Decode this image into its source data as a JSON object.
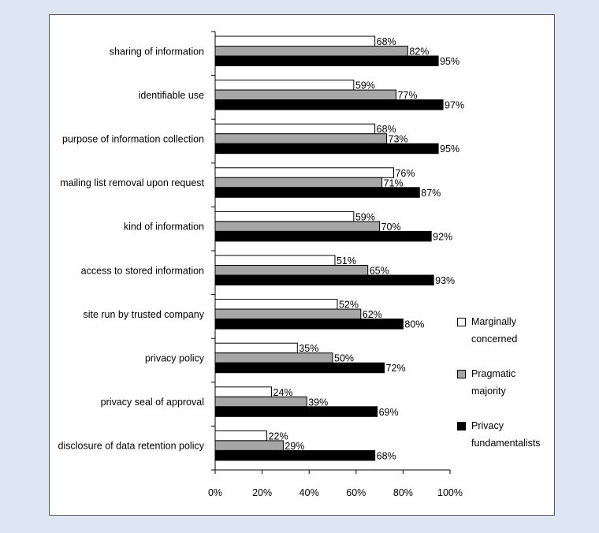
{
  "chart_data": {
    "type": "bar",
    "orientation": "horizontal",
    "categories": [
      "sharing of information",
      "identifiable use",
      "purpose of information collection",
      "mailing list removal upon request",
      "kind of information",
      "access to stored information",
      "site run by trusted company",
      "privacy policy",
      "privacy seal of approval",
      "disclosure of data retention policy"
    ],
    "series": [
      {
        "name": "Marginally concerned",
        "color": "#ffffff",
        "values": [
          68,
          59,
          68,
          76,
          59,
          51,
          52,
          35,
          24,
          22
        ],
        "labels": [
          "68%",
          "59%",
          "68%",
          "76%",
          "59%",
          "51%",
          "52%",
          "35%",
          "24%",
          "22%"
        ]
      },
      {
        "name": "Pragmatic majority",
        "color": "#a6a6a6",
        "values": [
          82,
          77,
          73,
          71,
          70,
          65,
          62,
          50,
          39,
          29
        ],
        "labels": [
          "82%",
          "77%",
          "73%",
          "71%",
          "70%",
          "65%",
          "62%",
          "50%",
          "39%",
          "29%"
        ]
      },
      {
        "name": "Privacy fundamentalists",
        "color": "#000000",
        "values": [
          95,
          97,
          95,
          87,
          92,
          93,
          80,
          72,
          69,
          68
        ],
        "labels": [
          "95%",
          "97%",
          "95%",
          "87%",
          "92%",
          "93%",
          "80%",
          "72%",
          "69%",
          "68%"
        ]
      }
    ],
    "xlim": [
      0,
      100
    ],
    "xticks": [
      "0%",
      "20%",
      "40%",
      "60%",
      "80%",
      "100%"
    ],
    "grid": false,
    "legend_position": "right"
  },
  "legend": [
    {
      "line1": "Marginally",
      "line2": "concerned",
      "color": "#ffffff"
    },
    {
      "line1": "Pragmatic",
      "line2": "majority",
      "color": "#a6a6a6"
    },
    {
      "line1": "Privacy",
      "line2": "fundamentalists",
      "color": "#000000"
    }
  ]
}
